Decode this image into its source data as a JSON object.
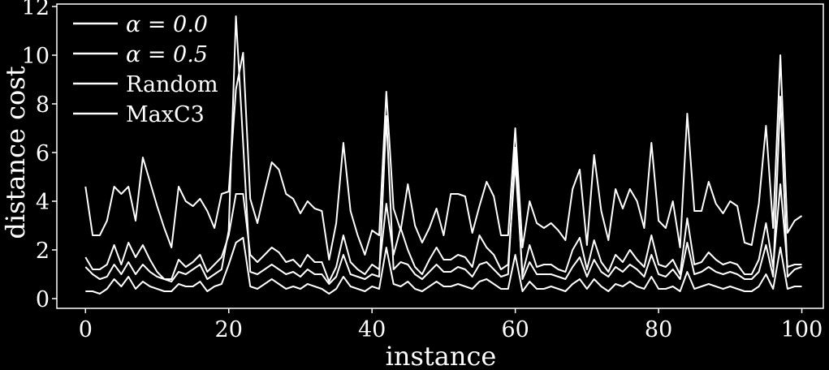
{
  "chart_data": {
    "type": "line",
    "xlabel": "instance",
    "ylabel": "distance cost",
    "xlim": [
      -4,
      103
    ],
    "ylim": [
      -0.4,
      12.1
    ],
    "xticks": [
      0,
      20,
      40,
      60,
      80,
      100
    ],
    "yticks": [
      0,
      2,
      4,
      6,
      8,
      10,
      12
    ],
    "grid": false,
    "legend": "top-left",
    "line_color": "#ffffff",
    "background": "#000000",
    "series": [
      {
        "name": "α = 0.0",
        "values": [
          4.6,
          2.6,
          2.6,
          3.2,
          4.6,
          4.3,
          4.6,
          3.2,
          5.8,
          4.8,
          3.8,
          2.9,
          2.1,
          4.6,
          4.0,
          3.8,
          4.1,
          3.6,
          2.9,
          4.3,
          4.4,
          8.6,
          10.1,
          4.1,
          3.1,
          4.4,
          5.6,
          5.3,
          4.3,
          4.1,
          3.5,
          4.0,
          3.7,
          3.6,
          1.6,
          3.1,
          6.4,
          3.6,
          2.6,
          1.8,
          2.8,
          2.6,
          8.5,
          3.7,
          2.8,
          4.7,
          3.0,
          2.3,
          2.9,
          3.7,
          2.6,
          4.3,
          4.3,
          4.2,
          2.7,
          3.8,
          4.8,
          4.2,
          2.6,
          2.6,
          7.0,
          2.1,
          4.0,
          3.1,
          2.9,
          3.1,
          2.8,
          2.4,
          4.5,
          5.3,
          2.2,
          5.9,
          3.6,
          2.4,
          4.5,
          3.7,
          4.5,
          4.0,
          2.9,
          6.4,
          3.2,
          2.9,
          4.0,
          2.1,
          7.6,
          3.6,
          3.6,
          4.8,
          3.9,
          3.5,
          4.0,
          3.8,
          2.3,
          2.2,
          3.9,
          7.1,
          2.9,
          10.0,
          2.7,
          3.2,
          3.4
        ]
      },
      {
        "name": "α = 0.5",
        "values": [
          1.7,
          1.2,
          1.2,
          1.4,
          2.2,
          1.4,
          2.3,
          1.7,
          2.2,
          1.6,
          1.1,
          0.8,
          0.8,
          1.6,
          1.3,
          1.5,
          1.8,
          1.1,
          1.4,
          1.7,
          2.6,
          4.3,
          4.3,
          1.8,
          1.5,
          1.8,
          2.1,
          1.9,
          1.5,
          1.6,
          1.3,
          1.8,
          1.5,
          1.5,
          0.7,
          1.3,
          2.6,
          1.5,
          1.2,
          1.0,
          1.4,
          1.2,
          3.9,
          1.8,
          2.9,
          2.0,
          1.3,
          1.0,
          1.6,
          2.1,
          1.6,
          1.6,
          1.8,
          1.7,
          1.3,
          2.6,
          2.1,
          1.8,
          1.2,
          1.4,
          5.6,
          1.0,
          2.2,
          1.3,
          1.4,
          1.4,
          1.2,
          1.1,
          2.0,
          2.5,
          1.2,
          2.4,
          1.5,
          1.1,
          1.8,
          1.5,
          2.0,
          1.6,
          1.3,
          2.6,
          1.4,
          1.3,
          1.6,
          1.0,
          3.3,
          1.4,
          1.5,
          1.9,
          1.6,
          1.4,
          1.5,
          1.4,
          1.0,
          1.0,
          1.6,
          3.1,
          1.3,
          4.7,
          1.3,
          1.4,
          1.4
        ]
      },
      {
        "name": "Random",
        "values": [
          1.3,
          1.0,
          0.8,
          0.9,
          1.4,
          1.0,
          1.5,
          1.0,
          1.4,
          1.1,
          0.9,
          0.8,
          0.7,
          1.1,
          1.0,
          1.2,
          1.4,
          0.8,
          1.0,
          1.2,
          2.8,
          11.6,
          6.4,
          1.1,
          1.0,
          1.2,
          1.4,
          1.2,
          1.0,
          1.1,
          0.9,
          1.2,
          1.0,
          1.0,
          0.6,
          0.9,
          1.8,
          1.0,
          0.9,
          0.8,
          1.0,
          0.9,
          7.5,
          1.2,
          1.5,
          1.4,
          1.0,
          0.8,
          1.1,
          1.4,
          1.1,
          1.1,
          1.3,
          1.2,
          0.9,
          1.4,
          1.5,
          1.2,
          0.9,
          1.0,
          6.2,
          0.8,
          1.5,
          1.0,
          1.0,
          1.0,
          0.9,
          0.8,
          1.3,
          1.7,
          0.9,
          1.6,
          1.1,
          0.9,
          1.3,
          1.1,
          1.4,
          1.2,
          0.9,
          1.8,
          1.0,
          0.9,
          1.2,
          0.8,
          2.3,
          1.0,
          1.1,
          1.3,
          1.1,
          1.0,
          1.1,
          1.0,
          0.8,
          0.8,
          1.1,
          2.2,
          0.9,
          8.3,
          0.9,
          1.2,
          1.3
        ]
      },
      {
        "name": "MaxC3",
        "values": [
          0.3,
          0.3,
          0.2,
          0.4,
          0.8,
          0.5,
          0.9,
          0.4,
          0.7,
          0.5,
          0.4,
          0.3,
          0.3,
          0.6,
          0.5,
          0.5,
          0.7,
          0.3,
          0.5,
          0.6,
          1.4,
          2.3,
          2.5,
          0.5,
          0.4,
          0.6,
          0.8,
          0.6,
          0.4,
          0.5,
          0.4,
          0.6,
          0.5,
          0.4,
          0.2,
          0.4,
          0.9,
          0.5,
          0.4,
          0.3,
          0.5,
          0.4,
          2.1,
          0.6,
          0.5,
          0.7,
          0.4,
          0.3,
          0.5,
          0.7,
          0.5,
          0.5,
          0.6,
          0.5,
          0.4,
          0.7,
          0.8,
          0.6,
          0.4,
          0.4,
          1.8,
          0.3,
          0.7,
          0.4,
          0.4,
          0.5,
          0.4,
          0.3,
          0.6,
          0.8,
          0.4,
          0.8,
          0.5,
          0.3,
          0.6,
          0.5,
          0.7,
          0.5,
          0.4,
          0.9,
          0.4,
          0.4,
          0.5,
          0.3,
          1.1,
          0.4,
          0.5,
          0.6,
          0.5,
          0.4,
          0.5,
          0.4,
          0.3,
          0.3,
          0.5,
          1.0,
          0.4,
          2.1,
          0.4,
          0.5,
          0.5
        ]
      }
    ]
  }
}
